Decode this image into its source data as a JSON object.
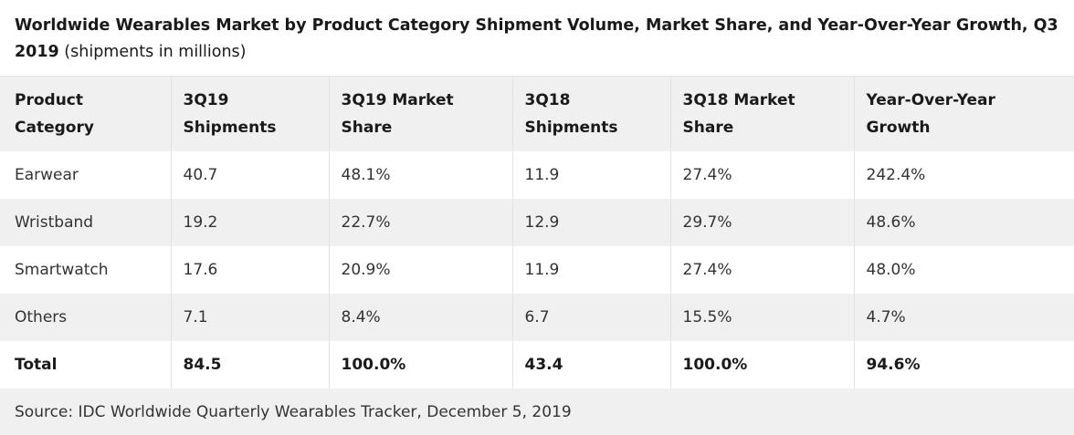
{
  "title_bold": "Worldwide Wearables Market by Product Category Shipment Volume, Market Share, and Year-Over-Year Growth, Q3 2019",
  "title_sub": "(shipments in millions)",
  "source": "Source: IDC Worldwide Quarterly Wearables Tracker, December 5, 2019",
  "chart_data": {
    "type": "table",
    "title": "Worldwide Wearables Market by Product Category Shipment Volume, Market Share, and Year-Over-Year Growth, Q3 2019 (shipments in millions)",
    "columns": [
      "Product Category",
      "3Q19 Shipments",
      "3Q19 Market Share",
      "3Q18 Shipments",
      "3Q18 Market Share",
      "Year-Over-Year Growth"
    ],
    "rows": [
      [
        "Earwear",
        "40.7",
        "48.1%",
        "11.9",
        "27.4%",
        "242.4%"
      ],
      [
        "Wristband",
        "19.2",
        "22.7%",
        "12.9",
        "29.7%",
        "48.6%"
      ],
      [
        "Smartwatch",
        "17.6",
        "20.9%",
        "11.9",
        "27.4%",
        "48.0%"
      ],
      [
        "Others",
        "7.1",
        "8.4%",
        "6.7",
        "15.5%",
        "4.7%"
      ],
      [
        "Total",
        "84.5",
        "100.0%",
        "43.4",
        "100.0%",
        "94.6%"
      ]
    ]
  }
}
